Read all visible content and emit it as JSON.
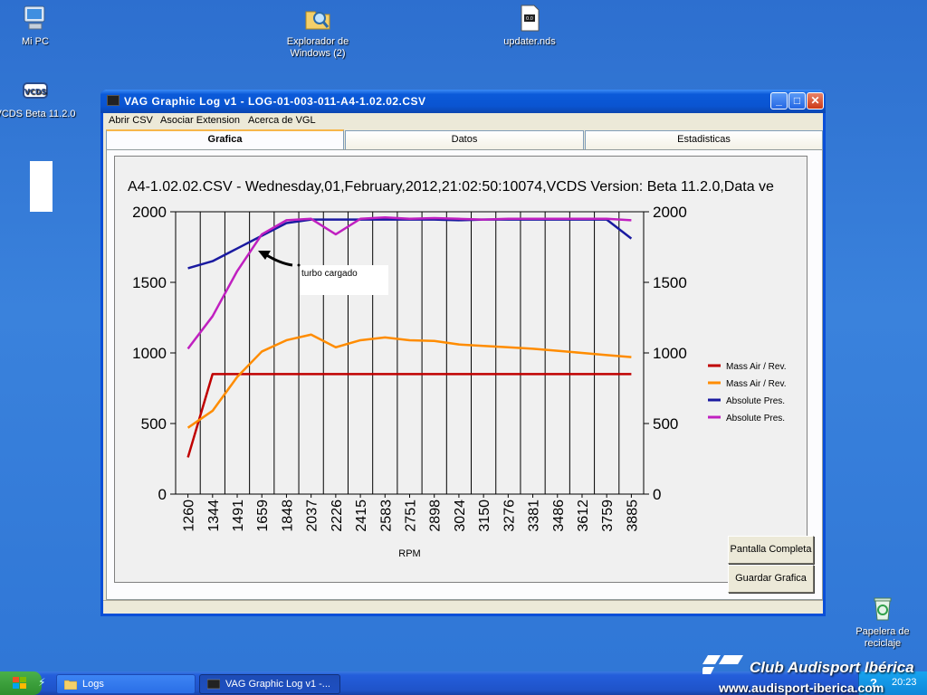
{
  "desktop": {
    "icons": [
      {
        "label": "Mi PC",
        "icon": "computer-icon"
      },
      {
        "label": "Explorador de Windows (2)",
        "icon": "explorer-icon"
      },
      {
        "label": "updater.nds",
        "icon": "file-icon"
      },
      {
        "label": "VCDS Beta 11.2.0",
        "icon": "vcds-icon"
      },
      {
        "label": "Papelera de reciclaje",
        "icon": "recycle-bin-icon"
      }
    ]
  },
  "window": {
    "title": "VAG Graphic Log  v1 -  LOG-01-003-011-A4-1.02.02.CSV",
    "menu": [
      "Abrir CSV",
      "Asociar Extension",
      "Acerca de VGL"
    ],
    "tabs": [
      "Grafica",
      "Datos",
      "Estadisticas"
    ],
    "active_tab": "Grafica",
    "buttons": {
      "fullscreen": "Pantalla Completa",
      "save_chart": "Guardar Grafica"
    }
  },
  "chart_data": {
    "type": "line",
    "title": "A4-1.02.02.CSV - Wednesday,01,February,2012,21:02:50:10074,VCDS Version: Beta 11.2.0,Data ve",
    "xlabel": "RPM",
    "ylabel": "",
    "ylim": [
      0,
      2000
    ],
    "yticks": [
      0,
      500,
      1000,
      1500,
      2000
    ],
    "grid": true,
    "legend_position": "right",
    "annotation": "turbo cargado",
    "categories": [
      "1260",
      "1344",
      "1491",
      "1659",
      "1848",
      "2037",
      "2226",
      "2415",
      "2583",
      "2751",
      "2898",
      "3024",
      "3150",
      "3276",
      "3381",
      "3486",
      "3612",
      "3759",
      "3885"
    ],
    "series": [
      {
        "name": "Mass Air / Rev.",
        "color": "#c00000",
        "values": [
          260,
          850,
          850,
          850,
          850,
          850,
          850,
          850,
          850,
          850,
          850,
          850,
          850,
          850,
          850,
          850,
          850,
          850,
          850
        ]
      },
      {
        "name": "Mass Air / Rev.",
        "color": "#ff8c00",
        "values": [
          470,
          590,
          830,
          1010,
          1090,
          1130,
          1040,
          1090,
          1110,
          1090,
          1085,
          1060,
          1050,
          1040,
          1030,
          1015,
          1000,
          985,
          970
        ]
      },
      {
        "name": "Absolute Pres.",
        "color": "#1a1aa0",
        "values": [
          1600,
          1650,
          1740,
          1830,
          1920,
          1945,
          1945,
          1945,
          1945,
          1945,
          1945,
          1940,
          1945,
          1945,
          1945,
          1945,
          1945,
          1945,
          1810
        ]
      },
      {
        "name": "Absolute Pres.",
        "color": "#c020c0",
        "values": [
          1030,
          1260,
          1580,
          1840,
          1940,
          1950,
          1840,
          1950,
          1960,
          1950,
          1955,
          1950,
          1945,
          1950,
          1950,
          1950,
          1950,
          1950,
          1940
        ]
      }
    ]
  },
  "taskbar": {
    "items": [
      {
        "label": "Logs",
        "state": "inactive"
      },
      {
        "label": "VAG Graphic Log  v1 -...",
        "state": "active"
      }
    ],
    "clock": "20:23"
  },
  "watermark": {
    "club": "Club Audisport Ibérica",
    "url": "www.audisport-iberica.com"
  }
}
